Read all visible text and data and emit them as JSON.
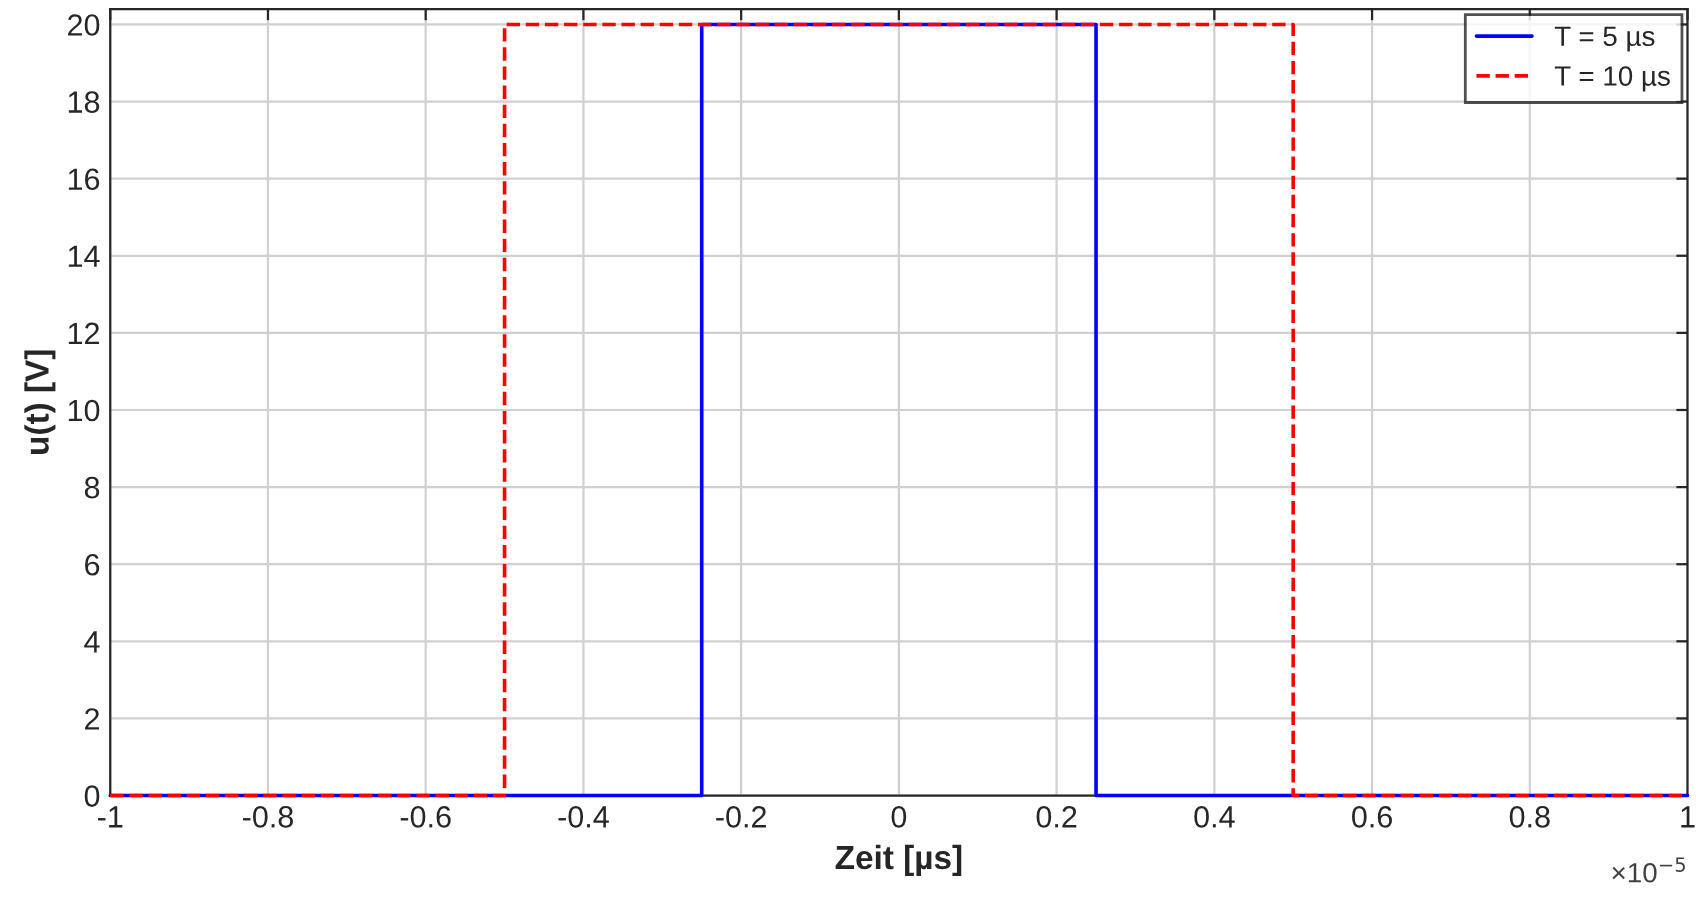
{
  "chart_data": {
    "type": "line",
    "xlabel": "Zeit [µs]",
    "ylabel": "u(t) [V]",
    "annotations": [
      "×10$^{−5}$"
    ],
    "series": [
      {
        "name": "T = 5 µs",
        "color": "#0000ff",
        "line_style": "solid",
        "x": [
          -1,
          -0.25,
          -0.25,
          0.25,
          0.25,
          1
        ],
        "values": [
          0,
          0,
          20,
          20,
          0,
          0
        ]
      },
      {
        "name": "T = 10 µs",
        "color": "#ff0000",
        "line_style": "dashed",
        "x": [
          -1,
          -0.5,
          -0.5,
          0.5,
          0.5,
          1
        ],
        "values": [
          0,
          0,
          20,
          20,
          0,
          0
        ]
      }
    ],
    "xlim": [
      -1,
      1
    ],
    "xticks": [
      -1,
      -0.8,
      -0.6,
      -0.4,
      -0.2,
      0,
      0.2,
      0.4,
      0.6,
      0.8,
      1
    ],
    "ylim": [
      0,
      20.4
    ],
    "yticks": [
      0,
      2,
      4,
      6,
      8,
      10,
      12,
      14,
      16,
      18,
      20
    ],
    "grid": true,
    "legend": "top right",
    "marker": "none"
  }
}
